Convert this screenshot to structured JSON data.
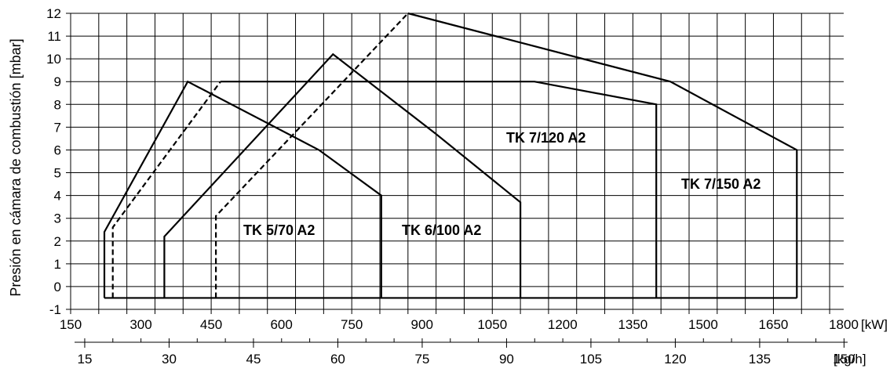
{
  "chart_data": {
    "type": "line",
    "ylabel": "Presión en cámara de combustión [mbar]",
    "x_unit": "[kW]",
    "x2_unit": "[kg/h]",
    "xlim": [
      150,
      1800
    ],
    "ylim": [
      -1,
      12
    ],
    "x_ticks": [
      150,
      300,
      450,
      600,
      750,
      900,
      1050,
      1200,
      1350,
      1500,
      1650,
      1800
    ],
    "y_ticks": [
      -1,
      0,
      1,
      2,
      3,
      4,
      5,
      6,
      7,
      8,
      9,
      10,
      11,
      12
    ],
    "x2_ticks": [
      15,
      30,
      45,
      60,
      75,
      90,
      105,
      120,
      135,
      150
    ],
    "x2_per_x1": 0.0833,
    "grid": true,
    "series": [
      {
        "name": "TK 5/70 A2",
        "points": [
          [
            222,
            -0.5
          ],
          [
            222,
            2.4
          ],
          [
            400,
            9.0
          ],
          [
            680,
            6.0
          ],
          [
            813,
            4.0
          ],
          [
            813,
            -0.5
          ]
        ],
        "dashed_min_line": [
          [
            240,
            -0.5
          ],
          [
            240,
            2.6
          ],
          [
            470,
            9.0
          ]
        ]
      },
      {
        "name": "TK 6/100 A2",
        "points": [
          [
            350,
            -0.5
          ],
          [
            350,
            2.2
          ],
          [
            710,
            10.2
          ],
          [
            930,
            6.7
          ],
          [
            1110,
            3.7
          ],
          [
            1110,
            -0.5
          ]
        ],
        "dashed_min_line": [
          [
            460,
            -0.5
          ],
          [
            460,
            3.1
          ],
          [
            870,
            12.0
          ]
        ]
      },
      {
        "name": "TK 7/120 A2",
        "points": [
          [
            470,
            9.0
          ],
          [
            1140,
            9.0
          ],
          [
            1400,
            8.0
          ],
          [
            1400,
            -0.5
          ]
        ]
      },
      {
        "name": "TK 7/150 A2",
        "points": [
          [
            870,
            12.0
          ],
          [
            1430,
            9.0
          ],
          [
            1700,
            6.0
          ],
          [
            1700,
            -0.5
          ]
        ]
      }
    ]
  }
}
